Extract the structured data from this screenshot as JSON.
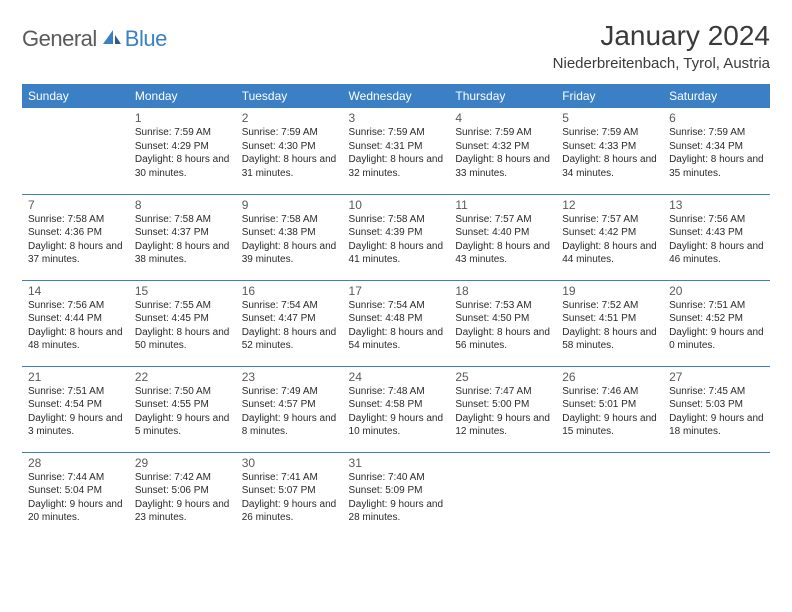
{
  "brand": {
    "general": "General",
    "blue": "Blue"
  },
  "title": "January 2024",
  "location": "Niederbreitenbach, Tyrol, Austria",
  "colors": {
    "header_bg": "#3b7fc4",
    "header_text": "#ffffff",
    "border": "#3b7fc4",
    "text": "#2a2a2a",
    "background": "#ffffff"
  },
  "fonts": {
    "title_size": 28,
    "location_size": 15,
    "th_size": 12,
    "daynum_size": 12,
    "info_size": 10
  },
  "weekdays": [
    "Sunday",
    "Monday",
    "Tuesday",
    "Wednesday",
    "Thursday",
    "Friday",
    "Saturday"
  ],
  "weeks": [
    [
      null,
      {
        "n": "1",
        "sr": "7:59 AM",
        "ss": "4:29 PM",
        "dl": "8 hours and 30 minutes."
      },
      {
        "n": "2",
        "sr": "7:59 AM",
        "ss": "4:30 PM",
        "dl": "8 hours and 31 minutes."
      },
      {
        "n": "3",
        "sr": "7:59 AM",
        "ss": "4:31 PM",
        "dl": "8 hours and 32 minutes."
      },
      {
        "n": "4",
        "sr": "7:59 AM",
        "ss": "4:32 PM",
        "dl": "8 hours and 33 minutes."
      },
      {
        "n": "5",
        "sr": "7:59 AM",
        "ss": "4:33 PM",
        "dl": "8 hours and 34 minutes."
      },
      {
        "n": "6",
        "sr": "7:59 AM",
        "ss": "4:34 PM",
        "dl": "8 hours and 35 minutes."
      }
    ],
    [
      {
        "n": "7",
        "sr": "7:58 AM",
        "ss": "4:36 PM",
        "dl": "8 hours and 37 minutes."
      },
      {
        "n": "8",
        "sr": "7:58 AM",
        "ss": "4:37 PM",
        "dl": "8 hours and 38 minutes."
      },
      {
        "n": "9",
        "sr": "7:58 AM",
        "ss": "4:38 PM",
        "dl": "8 hours and 39 minutes."
      },
      {
        "n": "10",
        "sr": "7:58 AM",
        "ss": "4:39 PM",
        "dl": "8 hours and 41 minutes."
      },
      {
        "n": "11",
        "sr": "7:57 AM",
        "ss": "4:40 PM",
        "dl": "8 hours and 43 minutes."
      },
      {
        "n": "12",
        "sr": "7:57 AM",
        "ss": "4:42 PM",
        "dl": "8 hours and 44 minutes."
      },
      {
        "n": "13",
        "sr": "7:56 AM",
        "ss": "4:43 PM",
        "dl": "8 hours and 46 minutes."
      }
    ],
    [
      {
        "n": "14",
        "sr": "7:56 AM",
        "ss": "4:44 PM",
        "dl": "8 hours and 48 minutes."
      },
      {
        "n": "15",
        "sr": "7:55 AM",
        "ss": "4:45 PM",
        "dl": "8 hours and 50 minutes."
      },
      {
        "n": "16",
        "sr": "7:54 AM",
        "ss": "4:47 PM",
        "dl": "8 hours and 52 minutes."
      },
      {
        "n": "17",
        "sr": "7:54 AM",
        "ss": "4:48 PM",
        "dl": "8 hours and 54 minutes."
      },
      {
        "n": "18",
        "sr": "7:53 AM",
        "ss": "4:50 PM",
        "dl": "8 hours and 56 minutes."
      },
      {
        "n": "19",
        "sr": "7:52 AM",
        "ss": "4:51 PM",
        "dl": "8 hours and 58 minutes."
      },
      {
        "n": "20",
        "sr": "7:51 AM",
        "ss": "4:52 PM",
        "dl": "9 hours and 0 minutes."
      }
    ],
    [
      {
        "n": "21",
        "sr": "7:51 AM",
        "ss": "4:54 PM",
        "dl": "9 hours and 3 minutes."
      },
      {
        "n": "22",
        "sr": "7:50 AM",
        "ss": "4:55 PM",
        "dl": "9 hours and 5 minutes."
      },
      {
        "n": "23",
        "sr": "7:49 AM",
        "ss": "4:57 PM",
        "dl": "9 hours and 8 minutes."
      },
      {
        "n": "24",
        "sr": "7:48 AM",
        "ss": "4:58 PM",
        "dl": "9 hours and 10 minutes."
      },
      {
        "n": "25",
        "sr": "7:47 AM",
        "ss": "5:00 PM",
        "dl": "9 hours and 12 minutes."
      },
      {
        "n": "26",
        "sr": "7:46 AM",
        "ss": "5:01 PM",
        "dl": "9 hours and 15 minutes."
      },
      {
        "n": "27",
        "sr": "7:45 AM",
        "ss": "5:03 PM",
        "dl": "9 hours and 18 minutes."
      }
    ],
    [
      {
        "n": "28",
        "sr": "7:44 AM",
        "ss": "5:04 PM",
        "dl": "9 hours and 20 minutes."
      },
      {
        "n": "29",
        "sr": "7:42 AM",
        "ss": "5:06 PM",
        "dl": "9 hours and 23 minutes."
      },
      {
        "n": "30",
        "sr": "7:41 AM",
        "ss": "5:07 PM",
        "dl": "9 hours and 26 minutes."
      },
      {
        "n": "31",
        "sr": "7:40 AM",
        "ss": "5:09 PM",
        "dl": "9 hours and 28 minutes."
      },
      null,
      null,
      null
    ]
  ],
  "labels": {
    "sunrise": "Sunrise:",
    "sunset": "Sunset:",
    "daylight": "Daylight:"
  }
}
